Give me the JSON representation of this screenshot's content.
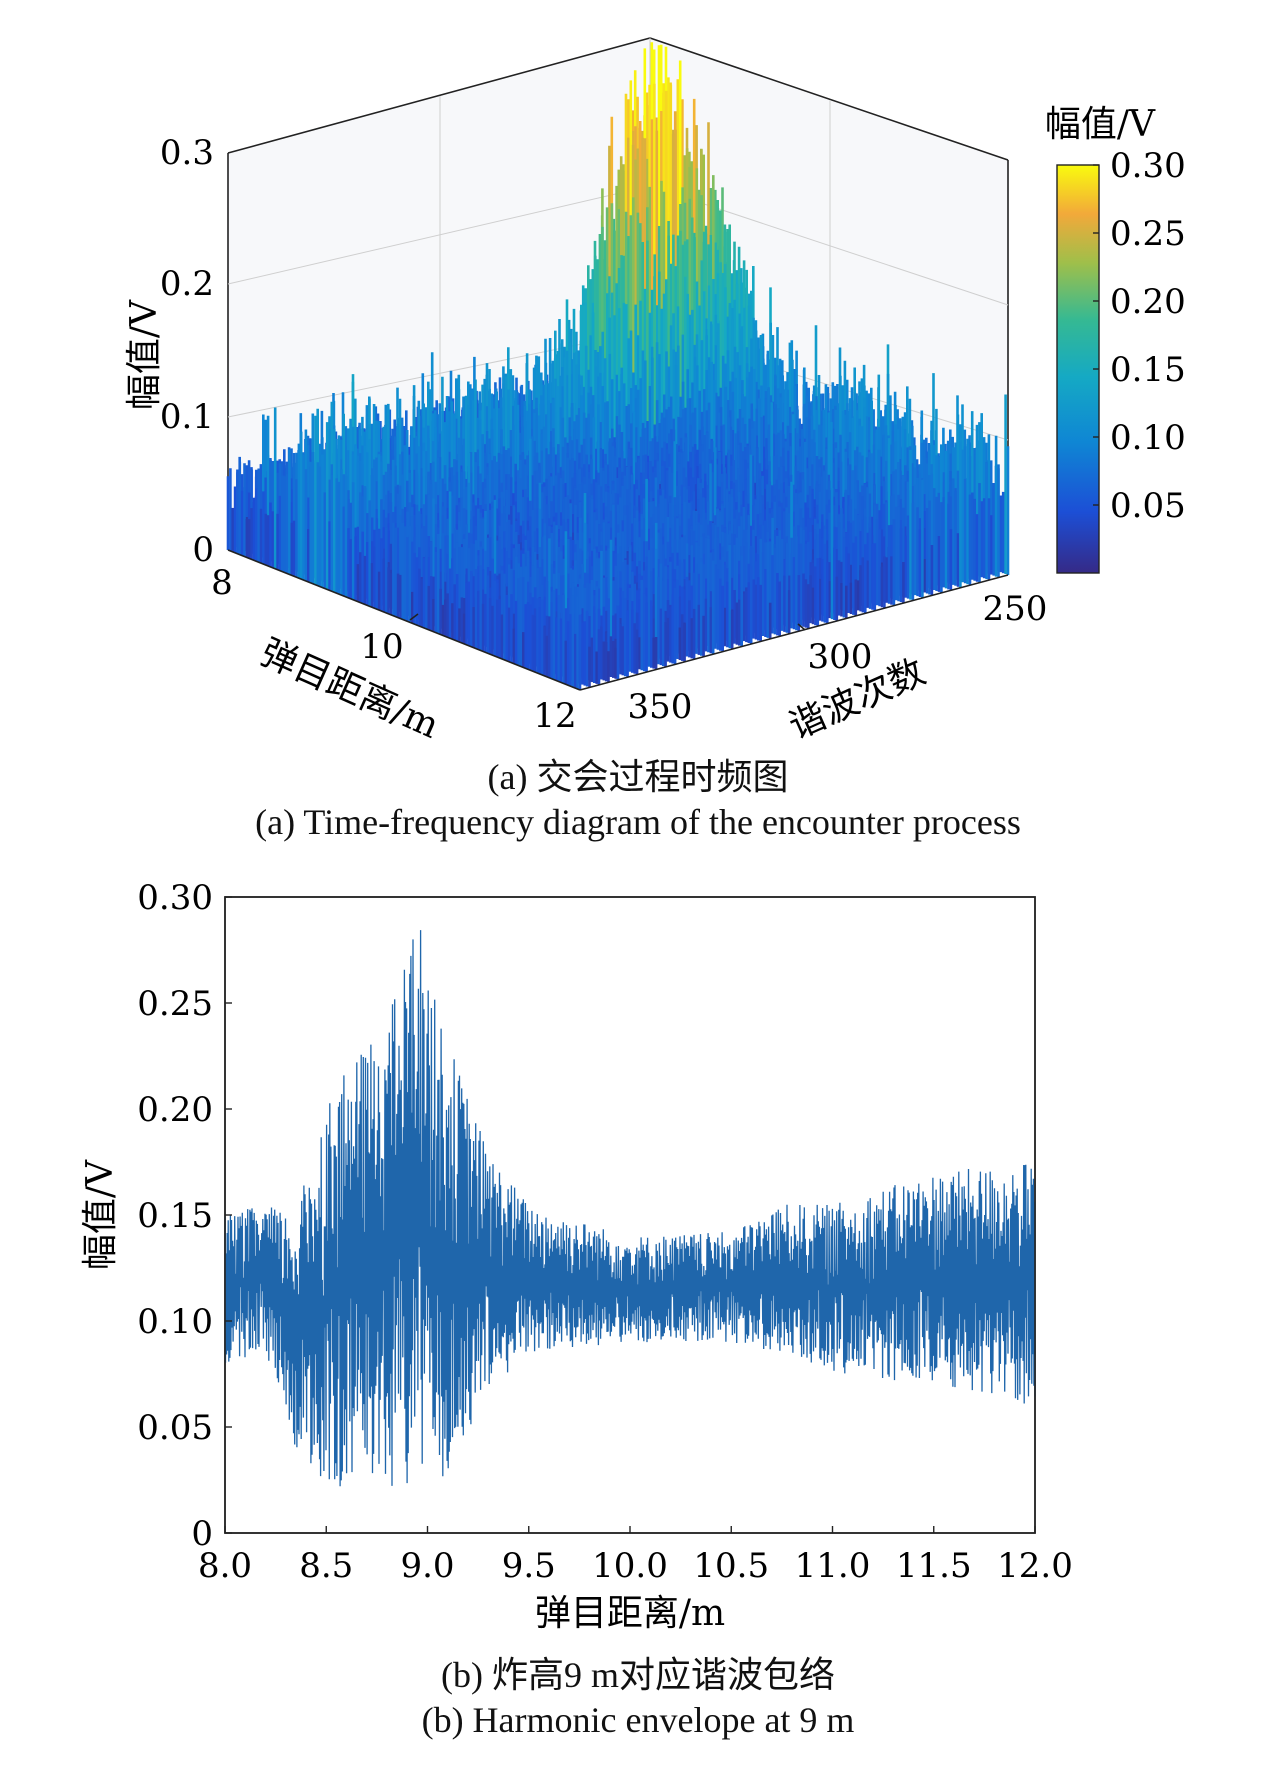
{
  "charts": {
    "a": {
      "caption_zh": "(a) 交会过程时频图",
      "caption_en": "(a) Time-frequency diagram of the encounter process"
    },
    "b": {
      "caption_zh": "(b) 炸高9 m对应谐波包络",
      "caption_en": "(b) Harmonic envelope at 9 m"
    }
  },
  "chart_data": [
    {
      "type": "surface3d",
      "zlabel": "幅值/V",
      "xlabel": "弹目距离/m",
      "ylabel": "谐波次数",
      "colorbar_label": "幅值/V",
      "colormap": "parula",
      "z_ticks": [
        "0",
        "0.1",
        "0.2",
        "0.3"
      ],
      "x_ticks": [
        "8",
        "10",
        "12"
      ],
      "y_ticks": [
        "350",
        "300",
        "250"
      ],
      "colorbar_ticks": [
        "0.30",
        "0.25",
        "0.20",
        "0.15",
        "0.10",
        "0.05"
      ],
      "xlim": [
        8,
        12
      ],
      "ylim": [
        240,
        360
      ],
      "zlim": [
        0,
        0.3
      ],
      "colorbar_range": [
        0,
        0.3
      ],
      "peak": {
        "x": 9.0,
        "harmonic": 265,
        "z": 0.3
      },
      "baseline_level": 0.05
    },
    {
      "type": "line",
      "xlabel": "弹目距离/m",
      "ylabel": "幅值/V",
      "x_ticks": [
        "8.0",
        "8.5",
        "9.0",
        "9.5",
        "10.0",
        "10.5",
        "11.0",
        "11.5",
        "12.0"
      ],
      "y_ticks": [
        "0",
        "0.05",
        "0.10",
        "0.15",
        "0.20",
        "0.25",
        "0.30"
      ],
      "xlim": [
        8.0,
        12.0
      ],
      "ylim": [
        0,
        0.3
      ],
      "color": "#1f66ab",
      "envelope": {
        "x": [
          8.0,
          8.2,
          8.35,
          8.5,
          8.7,
          8.85,
          8.95,
          9.05,
          9.15,
          9.3,
          9.5,
          10.0,
          10.5,
          10.75,
          11.0,
          11.5,
          12.0
        ],
        "upper": [
          0.15,
          0.155,
          0.15,
          0.205,
          0.23,
          0.255,
          0.295,
          0.245,
          0.22,
          0.18,
          0.155,
          0.14,
          0.142,
          0.155,
          0.155,
          0.17,
          0.175
        ],
        "lower": [
          0.08,
          0.085,
          0.04,
          0.015,
          0.025,
          0.02,
          0.025,
          0.01,
          0.04,
          0.065,
          0.085,
          0.09,
          0.09,
          0.085,
          0.075,
          0.07,
          0.06
        ]
      }
    }
  ]
}
